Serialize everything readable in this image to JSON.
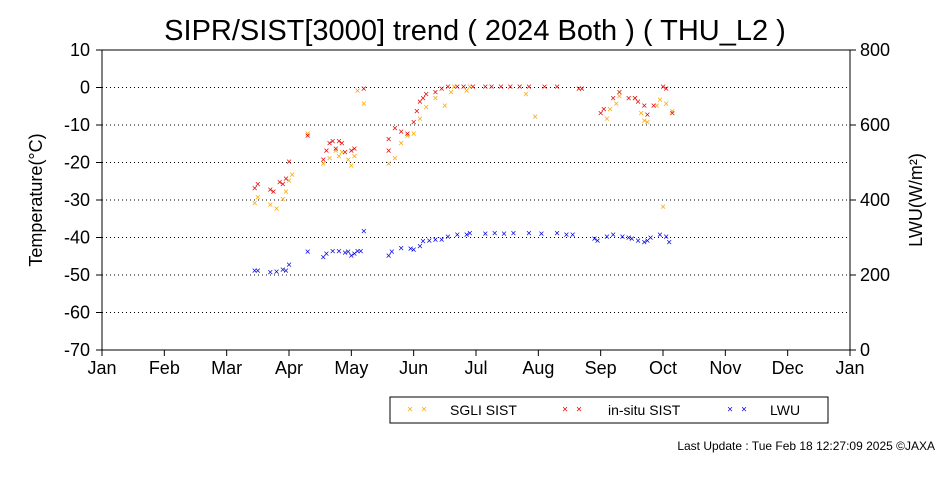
{
  "chart_data": {
    "type": "scatter",
    "title": "SIPR/SIST[3000] trend ( 2024 Both ) ( THU_L2 )",
    "ylabel": "Temperature(°C)",
    "y2label": "LWU(W/m²)",
    "ylim": [
      -70,
      10
    ],
    "y2lim": [
      0,
      800
    ],
    "xlim": [
      0,
      12
    ],
    "x_unit": "months since Jan 1 (2024)",
    "yticks": [
      "10",
      "0",
      "-10",
      "-20",
      "-30",
      "-40",
      "-50",
      "-60",
      "-70"
    ],
    "y2ticks": [
      "800",
      "600",
      "400",
      "200",
      "0"
    ],
    "xticks": [
      "Jan",
      "Feb",
      "Mar",
      "Apr",
      "May",
      "Jun",
      "Jul",
      "Aug",
      "Sep",
      "Oct",
      "Nov",
      "Dec",
      "Jan"
    ],
    "grid": "horizontal dotted",
    "legend_position": "bottom",
    "series": [
      {
        "name": "SGLI SIST",
        "axis": "left",
        "color": "#ffa500",
        "points": [
          [
            2.45,
            -31
          ],
          [
            2.5,
            -29.5
          ],
          [
            2.7,
            -31.5
          ],
          [
            2.8,
            -32.5
          ],
          [
            2.9,
            -30
          ],
          [
            2.95,
            -28
          ],
          [
            3.0,
            -25
          ],
          [
            3.05,
            -23.5
          ],
          [
            3.3,
            -12.5
          ],
          [
            3.55,
            -20.5
          ],
          [
            3.65,
            -19
          ],
          [
            3.75,
            -17
          ],
          [
            3.8,
            -18.5
          ],
          [
            3.85,
            -17.5
          ],
          [
            3.95,
            -19.5
          ],
          [
            4.0,
            -21
          ],
          [
            4.05,
            -18.5
          ],
          [
            4.2,
            -4.5
          ],
          [
            4.1,
            -1
          ],
          [
            4.6,
            -20.5
          ],
          [
            4.7,
            -19
          ],
          [
            4.8,
            -15
          ],
          [
            4.9,
            -13
          ],
          [
            5.0,
            -12.5
          ],
          [
            5.1,
            -8.5
          ],
          [
            5.2,
            -5.5
          ],
          [
            5.35,
            -3
          ],
          [
            5.5,
            -5
          ],
          [
            5.6,
            -1.5
          ],
          [
            5.65,
            0
          ],
          [
            5.85,
            -1
          ],
          [
            5.9,
            0
          ],
          [
            6.8,
            -2
          ],
          [
            6.95,
            -8
          ],
          [
            8.1,
            -8.5
          ],
          [
            8.15,
            -6
          ],
          [
            8.25,
            -4.5
          ],
          [
            8.3,
            -2.5
          ],
          [
            8.55,
            -3
          ],
          [
            8.65,
            -7
          ],
          [
            8.7,
            -9
          ],
          [
            8.75,
            -9.5
          ],
          [
            8.9,
            -5
          ],
          [
            8.95,
            -3.5
          ],
          [
            9.0,
            -32
          ],
          [
            9.05,
            -4.5
          ],
          [
            9.15,
            -6.5
          ]
        ]
      },
      {
        "name": "in-situ SIST",
        "axis": "left",
        "color": "#e50000",
        "points": [
          [
            2.45,
            -27
          ],
          [
            2.5,
            -26
          ],
          [
            2.7,
            -27.5
          ],
          [
            2.75,
            -28
          ],
          [
            2.85,
            -25.5
          ],
          [
            2.9,
            -26
          ],
          [
            2.95,
            -24.5
          ],
          [
            3.0,
            -20
          ],
          [
            3.3,
            -13
          ],
          [
            3.55,
            -19.5
          ],
          [
            3.6,
            -17
          ],
          [
            3.65,
            -15
          ],
          [
            3.7,
            -14.5
          ],
          [
            3.75,
            -16.5
          ],
          [
            3.8,
            -14.5
          ],
          [
            3.85,
            -15
          ],
          [
            3.9,
            -17.5
          ],
          [
            4.0,
            -17
          ],
          [
            4.05,
            -16.5
          ],
          [
            4.2,
            -0.5
          ],
          [
            4.6,
            -14
          ],
          [
            4.6,
            -17
          ],
          [
            4.7,
            -11
          ],
          [
            4.8,
            -12
          ],
          [
            4.9,
            -12.5
          ],
          [
            5.0,
            -9.5
          ],
          [
            5.05,
            -6.5
          ],
          [
            5.1,
            -4
          ],
          [
            5.15,
            -3
          ],
          [
            5.2,
            -2
          ],
          [
            5.35,
            -1.5
          ],
          [
            5.45,
            -0.5
          ],
          [
            5.55,
            0
          ],
          [
            5.7,
            0
          ],
          [
            5.8,
            0
          ],
          [
            5.95,
            0
          ],
          [
            6.15,
            0
          ],
          [
            6.25,
            0
          ],
          [
            6.4,
            0
          ],
          [
            6.55,
            0
          ],
          [
            6.7,
            0
          ],
          [
            6.85,
            0
          ],
          [
            7.1,
            0
          ],
          [
            7.3,
            0
          ],
          [
            7.65,
            -0.5
          ],
          [
            7.7,
            -0.5
          ],
          [
            8.0,
            -7
          ],
          [
            8.05,
            -6
          ],
          [
            8.2,
            -3
          ],
          [
            8.3,
            -1.5
          ],
          [
            8.45,
            -3
          ],
          [
            8.55,
            -3
          ],
          [
            8.6,
            -4
          ],
          [
            8.7,
            -5
          ],
          [
            8.75,
            -7.5
          ],
          [
            8.85,
            -5
          ],
          [
            9.0,
            0
          ],
          [
            9.05,
            -0.5
          ],
          [
            9.15,
            -7
          ]
        ]
      },
      {
        "name": "LWU",
        "axis": "right",
        "color": "#0000e5",
        "points": [
          [
            2.45,
            210
          ],
          [
            2.5,
            210
          ],
          [
            2.7,
            205
          ],
          [
            2.8,
            207
          ],
          [
            2.9,
            212
          ],
          [
            2.95,
            210
          ],
          [
            3.0,
            225
          ],
          [
            3.3,
            260
          ],
          [
            3.55,
            245
          ],
          [
            3.6,
            255
          ],
          [
            3.7,
            262
          ],
          [
            3.8,
            262
          ],
          [
            3.9,
            258
          ],
          [
            3.95,
            260
          ],
          [
            4.0,
            250
          ],
          [
            4.05,
            255
          ],
          [
            4.1,
            262
          ],
          [
            4.15,
            262
          ],
          [
            4.2,
            315
          ],
          [
            4.6,
            250
          ],
          [
            4.65,
            260
          ],
          [
            4.8,
            270
          ],
          [
            4.95,
            268
          ],
          [
            5.0,
            265
          ],
          [
            5.1,
            275
          ],
          [
            5.15,
            288
          ],
          [
            5.25,
            290
          ],
          [
            5.35,
            292
          ],
          [
            5.45,
            292
          ],
          [
            5.55,
            300
          ],
          [
            5.7,
            305
          ],
          [
            5.85,
            305
          ],
          [
            5.9,
            310
          ],
          [
            6.15,
            308
          ],
          [
            6.3,
            310
          ],
          [
            6.45,
            308
          ],
          [
            6.6,
            310
          ],
          [
            6.85,
            310
          ],
          [
            7.05,
            308
          ],
          [
            7.3,
            310
          ],
          [
            7.45,
            305
          ],
          [
            7.55,
            305
          ],
          [
            7.95,
            290
          ],
          [
            7.9,
            295
          ],
          [
            8.1,
            300
          ],
          [
            8.2,
            305
          ],
          [
            8.35,
            300
          ],
          [
            8.45,
            298
          ],
          [
            8.5,
            295
          ],
          [
            8.6,
            290
          ],
          [
            8.7,
            285
          ],
          [
            8.75,
            290
          ],
          [
            8.8,
            298
          ],
          [
            8.95,
            305
          ],
          [
            9.05,
            300
          ],
          [
            9.1,
            285
          ]
        ]
      }
    ]
  },
  "legend": {
    "items": [
      {
        "label": "SGLI SIST",
        "color": "#ffa500"
      },
      {
        "label": "in-situ SIST",
        "color": "#e50000"
      },
      {
        "label": "LWU",
        "color": "#0000e5"
      }
    ]
  },
  "footer": {
    "text": "Last Update : Tue Feb 18 12:27:09 2025  ©JAXA"
  }
}
